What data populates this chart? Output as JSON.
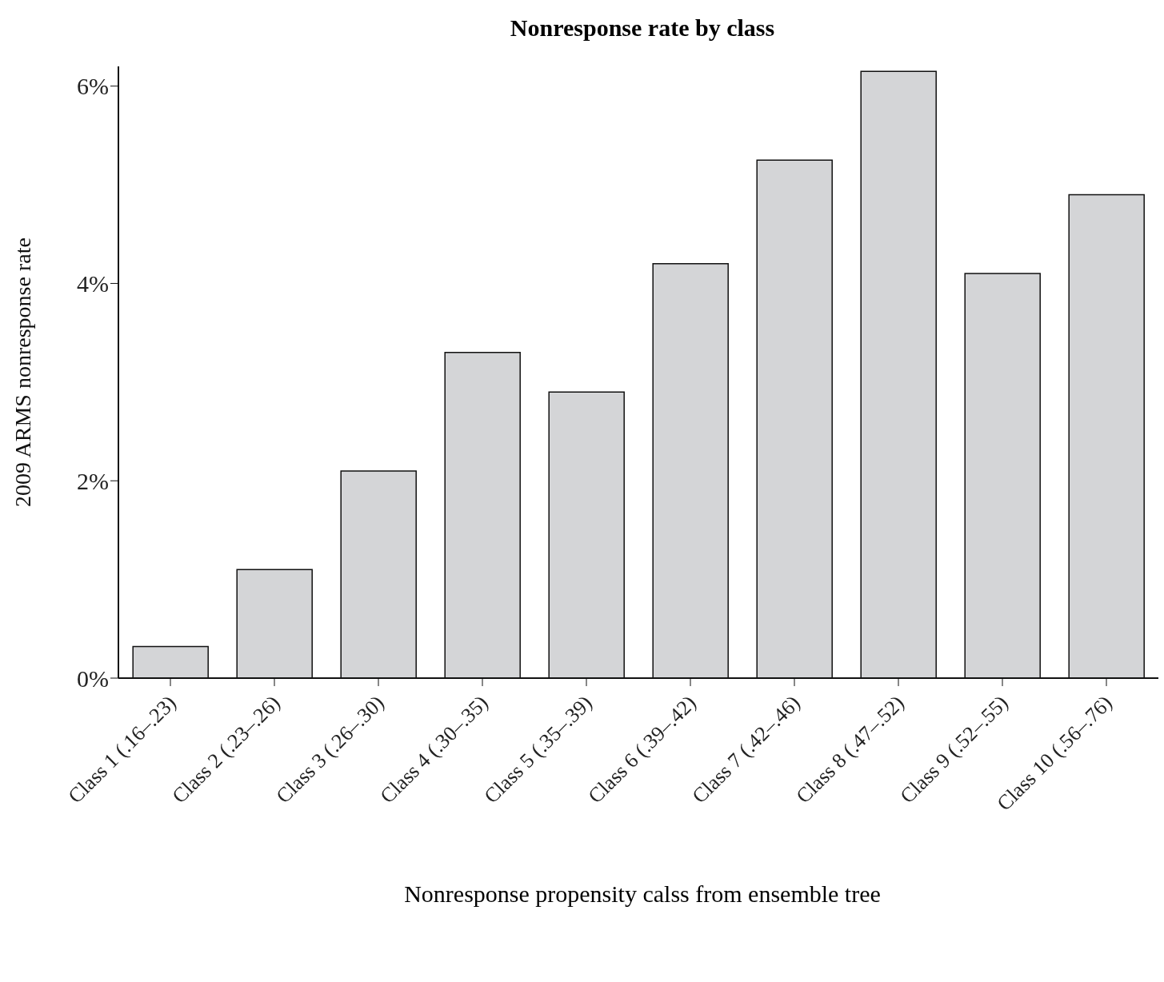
{
  "chart_data": {
    "type": "bar",
    "title": "Nonresponse rate by class",
    "xlabel": "Nonresponse propensity calss from ensemble tree",
    "ylabel": "2009 ARMS nonresponse rate",
    "categories": [
      "Class 1 (.16–.23)",
      "Class 2 (.23–.26)",
      "Class 3 (.26–.30)",
      "Class 4 (.30–.35)",
      "Class 5 (.35–.39)",
      "Class 6 (.39–.42)",
      "Class 7 (.42–.46)",
      "Class 8 (.47–.52)",
      "Class 9 (.52–.55)",
      "Class 10 (.56–.76)"
    ],
    "values": [
      0.32,
      1.1,
      2.1,
      3.3,
      2.9,
      4.2,
      5.25,
      6.15,
      4.1,
      4.9
    ],
    "color": "#d4d5d7",
    "ylim": [
      0,
      6.2
    ],
    "yticks": [
      {
        "value": 0,
        "label": "0%"
      },
      {
        "value": 2,
        "label": "2%"
      },
      {
        "value": 4,
        "label": "4%"
      },
      {
        "value": 6,
        "label": "6%"
      }
    ],
    "grid": false,
    "legend": false
  }
}
